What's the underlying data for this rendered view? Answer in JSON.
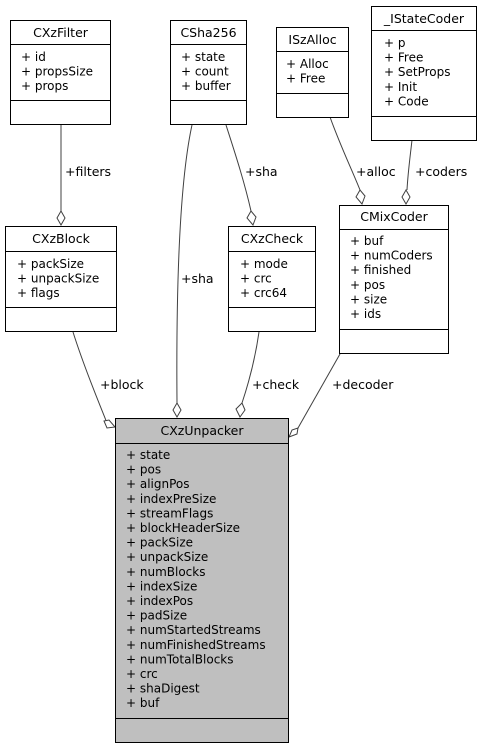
{
  "classes": {
    "cxzfilter": {
      "name": "CXzFilter",
      "members": [
        "+ id",
        "+ propsSize",
        "+ props"
      ]
    },
    "csha256": {
      "name": "CSha256",
      "members": [
        "+ state",
        "+ count",
        "+ buffer"
      ]
    },
    "iszalloc": {
      "name": "ISzAlloc",
      "members": [
        "+ Alloc",
        "+ Free"
      ]
    },
    "istatecoder": {
      "name": "_IStateCoder",
      "members": [
        "+ p",
        "+ Free",
        "+ SetProps",
        "+ Init",
        "+ Code"
      ]
    },
    "cxzblock": {
      "name": "CXzBlock",
      "members": [
        "+ packSize",
        "+ unpackSize",
        "+ flags"
      ]
    },
    "cxzcheck": {
      "name": "CXzCheck",
      "members": [
        "+ mode",
        "+ crc",
        "+ crc64"
      ]
    },
    "cmixcoder": {
      "name": "CMixCoder",
      "members": [
        "+ buf",
        "+ numCoders",
        "+ finished",
        "+ pos",
        "+ size",
        "+ ids"
      ]
    },
    "cxzunpacker": {
      "name": "CXzUnpacker",
      "members": [
        "+ state",
        "+ pos",
        "+ alignPos",
        "+ indexPreSize",
        "+ streamFlags",
        "+ blockHeaderSize",
        "+ packSize",
        "+ unpackSize",
        "+ numBlocks",
        "+ indexSize",
        "+ indexPos",
        "+ padSize",
        "+ numStartedStreams",
        "+ numFinishedStreams",
        "+ numTotalBlocks",
        "+ crc",
        "+ shaDigest",
        "+ buf"
      ]
    }
  },
  "edges": {
    "filters": "+filters",
    "sha_check": "+sha",
    "sha_unpacker": "+sha",
    "alloc": "+alloc",
    "coders": "+coders",
    "block": "+block",
    "check": "+check",
    "decoder": "+decoder"
  }
}
